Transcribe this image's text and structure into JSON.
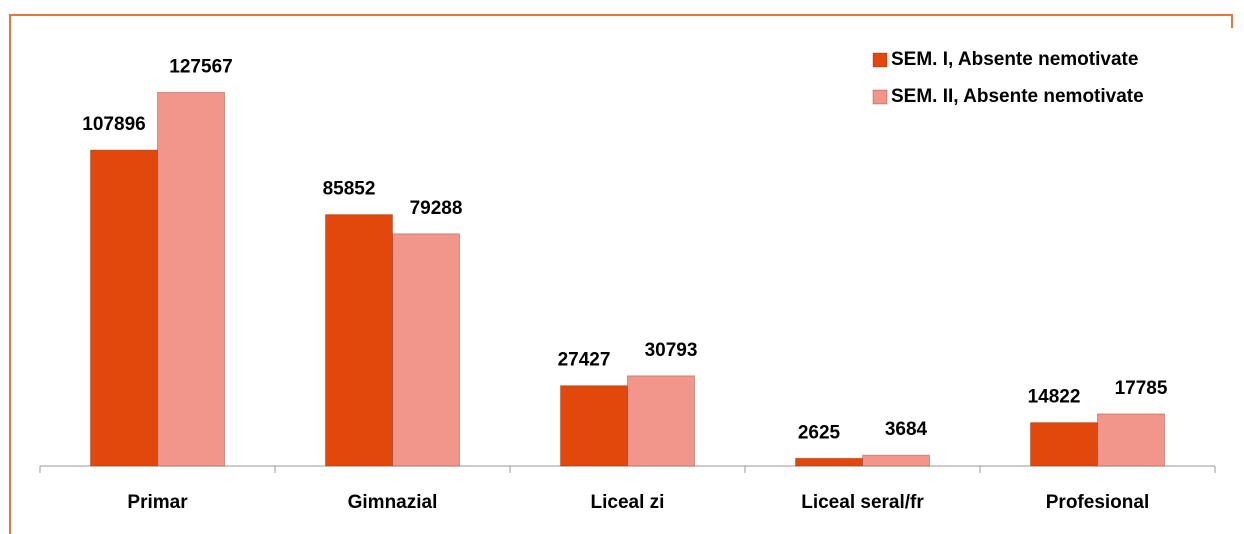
{
  "chart_data": {
    "type": "bar",
    "categories": [
      "Primar",
      "Gimnazial",
      "Liceal zi",
      "Liceal seral/fr",
      "Profesional"
    ],
    "series": [
      {
        "name": "SEM. I, Absente nemotivate",
        "color": "#e2470c",
        "values": [
          107896,
          85852,
          27427,
          2625,
          14822
        ]
      },
      {
        "name": "SEM. II, Absente nemotivate",
        "color": "#f2958a",
        "values": [
          127567,
          79288,
          30793,
          3684,
          17785
        ]
      }
    ],
    "ylim": [
      0,
      140000
    ]
  }
}
